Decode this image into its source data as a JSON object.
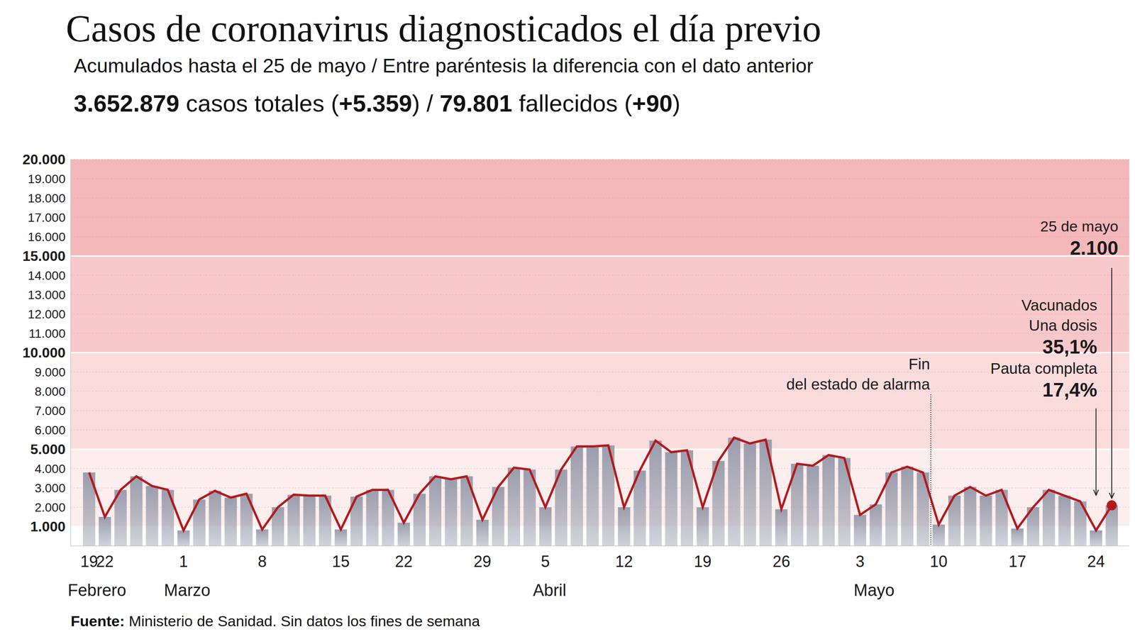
{
  "chart_data": {
    "type": "bar",
    "title": "Casos de coronavirus diagnosticados el día previo",
    "subtitle": "Acumulados hasta el 25 de mayo / Entre paréntesis la diferencia con el dato anterior",
    "summary": [
      {
        "text": "3.652.879",
        "bold": true
      },
      {
        "text": " casos totales (",
        "bold": false
      },
      {
        "text": "+5.359",
        "bold": true
      },
      {
        "text": ") / ",
        "bold": false
      },
      {
        "text": "79.801",
        "bold": true
      },
      {
        "text": " fallecidos (",
        "bold": false
      },
      {
        "text": "+90",
        "bold": true
      },
      {
        "text": ")",
        "bold": false
      }
    ],
    "source": [
      {
        "text": "Fuente:",
        "bold": true
      },
      {
        "text": " Ministerio de Sanidad. Sin datos los fines de semana",
        "bold": false
      }
    ],
    "categories": [
      "19",
      "22",
      null,
      null,
      null,
      null,
      "1",
      null,
      null,
      null,
      null,
      "8",
      null,
      null,
      null,
      null,
      "15",
      null,
      null,
      null,
      "22",
      null,
      null,
      null,
      null,
      "29",
      null,
      null,
      null,
      "5",
      null,
      null,
      null,
      null,
      "12",
      null,
      null,
      null,
      null,
      "19",
      null,
      null,
      null,
      null,
      "26",
      null,
      null,
      null,
      null,
      "3",
      null,
      null,
      null,
      null,
      "10",
      null,
      null,
      null,
      null,
      "17",
      null,
      null,
      null,
      null,
      "24",
      null
    ],
    "month_categories": [
      "Febrero",
      null,
      null,
      null,
      null,
      null,
      "Marzo",
      null,
      null,
      null,
      null,
      null,
      null,
      null,
      null,
      null,
      null,
      null,
      null,
      null,
      null,
      null,
      null,
      null,
      null,
      null,
      null,
      null,
      null,
      "Abril",
      null,
      null,
      null,
      null,
      null,
      null,
      null,
      null,
      null,
      null,
      null,
      null,
      null,
      null,
      null,
      null,
      null,
      null,
      null,
      "Mayo",
      null,
      null,
      null,
      null,
      null,
      null,
      null,
      null,
      null,
      null,
      null,
      null,
      null,
      null,
      null,
      null
    ],
    "series": [
      {
        "type": "bar",
        "color": "#9a9dad",
        "values": [
          3800,
          1500,
          2900,
          3600,
          3100,
          2900,
          800,
          2400,
          2850,
          2500,
          2700,
          850,
          2000,
          2650,
          2600,
          2600,
          850,
          2550,
          2900,
          2900,
          1200,
          2700,
          3600,
          3450,
          3600,
          1350,
          3050,
          4050,
          3950,
          2000,
          3950,
          5150,
          5150,
          5200,
          2000,
          3900,
          5450,
          4850,
          4950,
          2000,
          4400,
          5600,
          5300,
          5500,
          1900,
          4250,
          4150,
          4700,
          4550,
          1600,
          2150,
          3800,
          4100,
          3800,
          1100,
          2600,
          3050,
          2600,
          2900,
          900,
          2000,
          2900,
          2600,
          2300,
          800,
          2100
        ]
      },
      {
        "type": "line",
        "color": "#b3191c",
        "marker": "last",
        "values": [
          3800,
          1500,
          2900,
          3600,
          3100,
          2900,
          800,
          2400,
          2850,
          2500,
          2700,
          850,
          2000,
          2650,
          2600,
          2600,
          850,
          2550,
          2900,
          2900,
          1200,
          2700,
          3600,
          3450,
          3600,
          1350,
          3050,
          4050,
          3950,
          2000,
          3950,
          5150,
          5150,
          5200,
          2000,
          3900,
          5450,
          4850,
          4950,
          2000,
          4400,
          5600,
          5300,
          5500,
          1900,
          4250,
          4150,
          4700,
          4550,
          1600,
          2150,
          3800,
          4100,
          3800,
          1100,
          2600,
          3050,
          2600,
          2900,
          900,
          2000,
          2900,
          2600,
          2300,
          800,
          2100
        ]
      }
    ],
    "ylim": [
      0,
      20000
    ],
    "yticks": [
      {
        "value": 1000,
        "label": "1.000"
      },
      {
        "value": 2000,
        "label": "2.000"
      },
      {
        "value": 3000,
        "label": "3.000"
      },
      {
        "value": 4000,
        "label": "4.000"
      },
      {
        "value": 5000,
        "label": "5.000"
      },
      {
        "value": 6000,
        "label": "6.000"
      },
      {
        "value": 7000,
        "label": "7.000"
      },
      {
        "value": 8000,
        "label": "8.000"
      },
      {
        "value": 9000,
        "label": "9.000"
      },
      {
        "value": 10000,
        "label": "10.000"
      },
      {
        "value": 11000,
        "label": "11.000"
      },
      {
        "value": 12000,
        "label": "12.000"
      },
      {
        "value": 13000,
        "label": "13.000"
      },
      {
        "value": 14000,
        "label": "14.000"
      },
      {
        "value": 15000,
        "label": "15.000"
      },
      {
        "value": 16000,
        "label": "16.000"
      },
      {
        "value": 17000,
        "label": "17.000"
      },
      {
        "value": 18000,
        "label": "18.000"
      },
      {
        "value": 19000,
        "label": "19.000"
      },
      {
        "value": 20000,
        "label": "20.000"
      }
    ],
    "grid": true,
    "bands": [
      {
        "from": 1000,
        "to": 5000,
        "color": "#fdeeee"
      },
      {
        "from": 5000,
        "to": 10000,
        "color": "#fbdcdd"
      },
      {
        "from": 10000,
        "to": 15000,
        "color": "#f7c8ca"
      },
      {
        "from": 15000,
        "to": 20000,
        "color": "#f4b7ba"
      }
    ],
    "events": [
      {
        "lines": [
          "Fin",
          "del estado de alarma"
        ],
        "category_index": 54
      }
    ],
    "highlight": {
      "label": "25 de mayo",
      "value": 2100,
      "value_label": "2.100",
      "category_index": 65
    },
    "vaccination": {
      "title": "Vacunados",
      "items": [
        {
          "label": "Una dosis",
          "value_label": "35,1%"
        },
        {
          "label": "Pauta completa",
          "value_label": "17,4%"
        }
      ],
      "category_index": 64
    }
  }
}
